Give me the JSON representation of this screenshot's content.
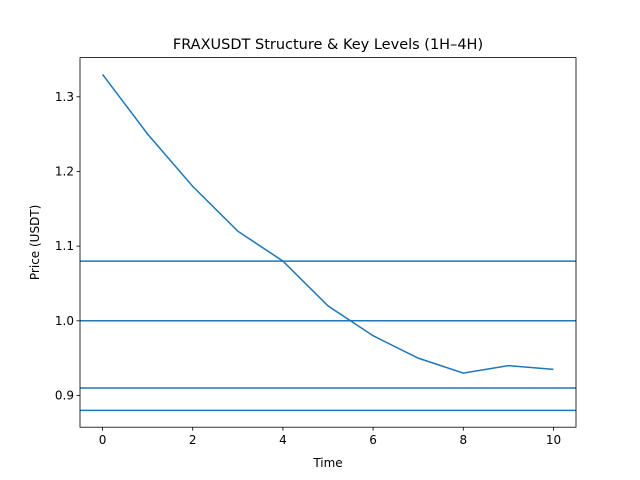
{
  "chart_data": {
    "type": "line",
    "title": "FRAXUSDT Structure & Key Levels (1H–4H)",
    "x_label": "Time",
    "y_label": "Price (USDT)",
    "x": [
      0,
      1,
      2,
      3,
      4,
      5,
      6,
      7,
      8,
      9,
      10
    ],
    "series": [
      {
        "color": "#1f77b4",
        "values": [
          1.33,
          1.25,
          1.18,
          1.12,
          1.08,
          1.02,
          0.98,
          0.95,
          0.93,
          0.94,
          0.935
        ]
      }
    ],
    "levels": [
      1.08,
      1.0,
      0.91,
      0.88
    ],
    "level_color": "#1f77b4",
    "xlim": [
      -0.5,
      10.5
    ],
    "xticks": [
      0,
      2,
      4,
      6,
      8,
      10
    ],
    "ylim": [
      0.8575,
      1.3525
    ],
    "yticks": [
      0.9,
      1.0,
      1.1,
      1.2,
      1.3
    ],
    "grid": false
  }
}
